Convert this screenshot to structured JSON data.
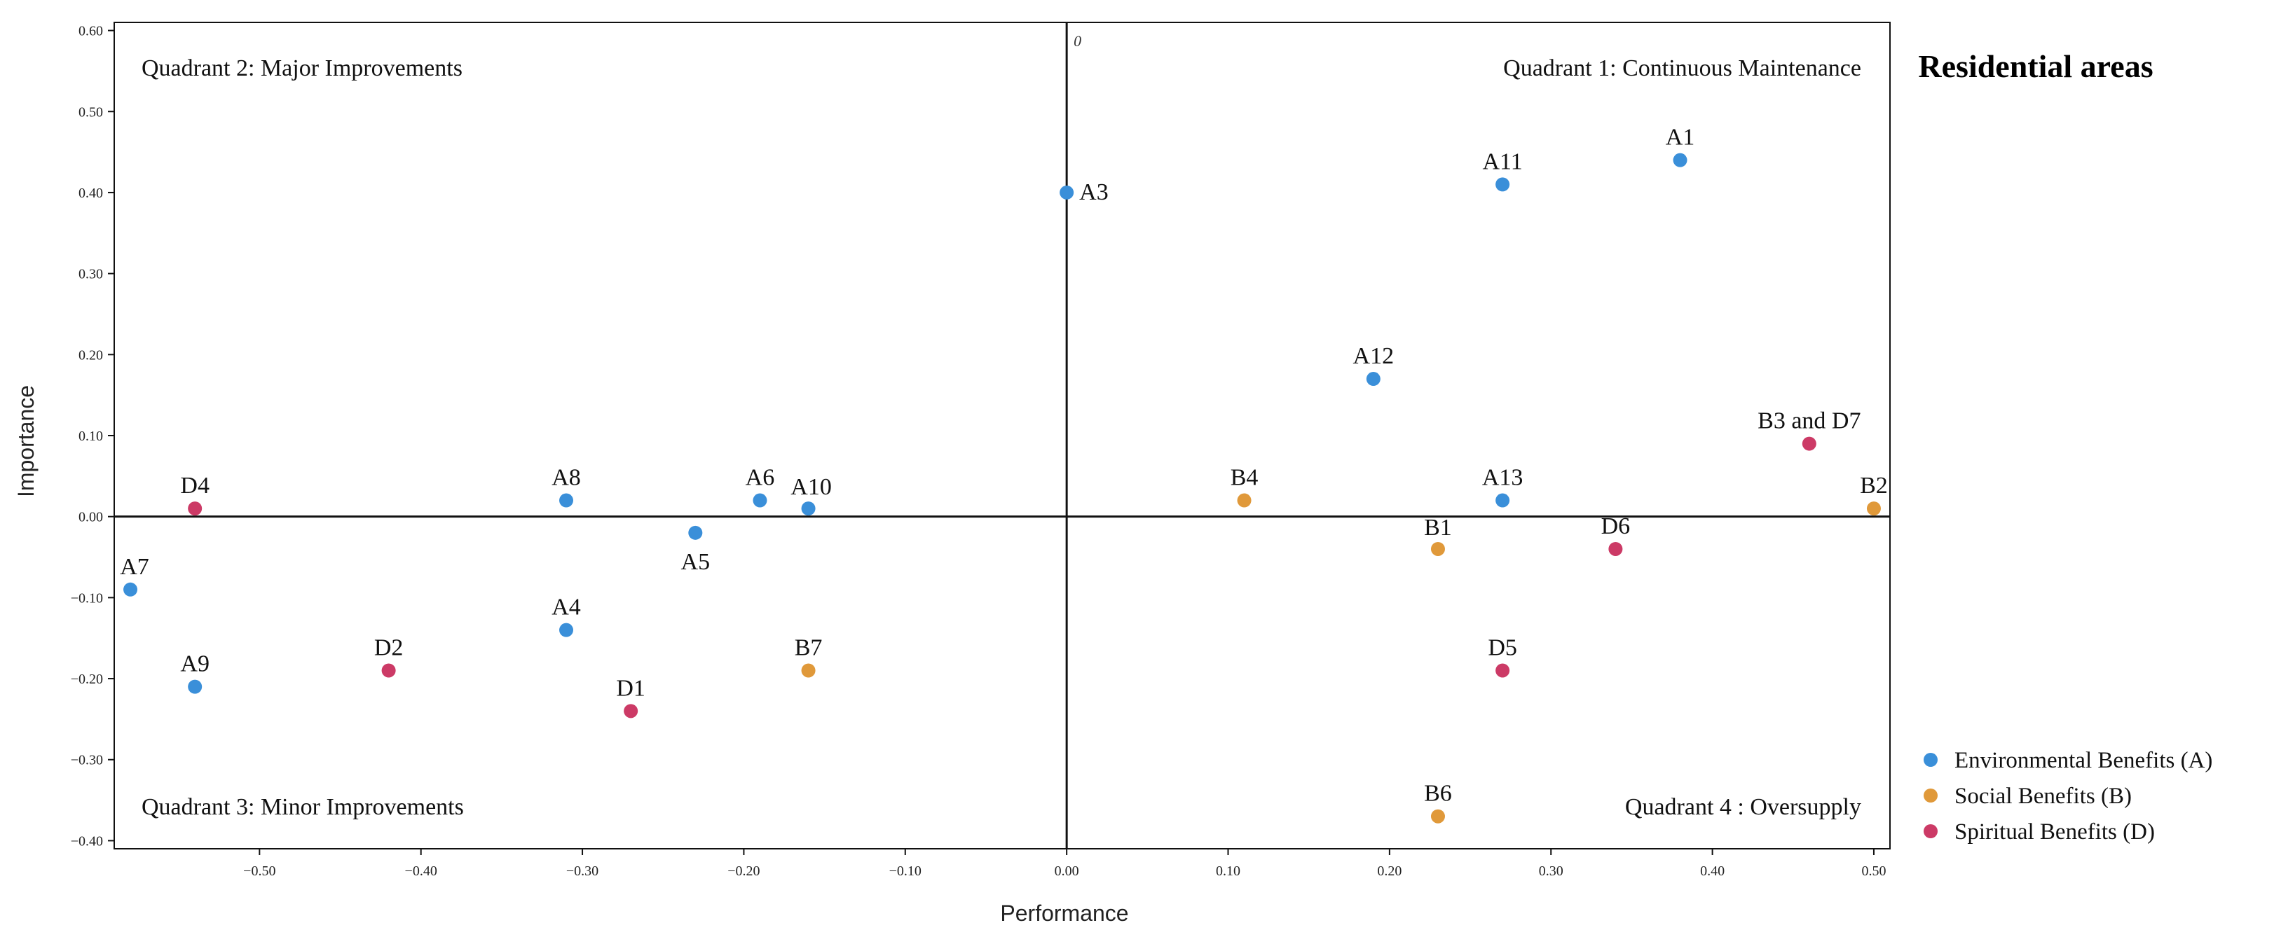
{
  "chart_data": {
    "type": "scatter",
    "title": "Residential areas",
    "xlabel": "Performance",
    "ylabel": "Importance",
    "xlim": [
      -0.59,
      0.51
    ],
    "ylim": [
      -0.41,
      0.61
    ],
    "xticks": [
      -0.5,
      -0.4,
      -0.3,
      -0.2,
      -0.1,
      0.0,
      0.1,
      0.2,
      0.3,
      0.4,
      0.5
    ],
    "xtick_labels": [
      "−0.50",
      "−0.40",
      "−0.30",
      "−0.20",
      "−0.10",
      "0.00",
      "0.10",
      "0.20",
      "0.30",
      "0.40",
      "0.50"
    ],
    "yticks": [
      0.6,
      0.5,
      0.4,
      0.3,
      0.2,
      0.1,
      0.0,
      -0.1,
      -0.2,
      -0.3,
      -0.4
    ],
    "ytick_labels": [
      "0.60",
      "0.50",
      "0.40",
      "0.30",
      "0.20",
      "0.10",
      "0.00",
      "−0.10",
      "−0.20",
      "−0.30",
      "−0.40"
    ],
    "origin_label": "0",
    "quadrants": {
      "q1": "Quadrant 1: Continuous Maintenance",
      "q2": "Quadrant 2: Major Improvements",
      "q3": "Quadrant 3: Minor Improvements",
      "q4": "Quadrant 4 : Oversupply"
    },
    "series": [
      {
        "name": "Environmental Benefits (A)",
        "color": "#3a8fd9",
        "points": [
          {
            "label": "A1",
            "x": 0.38,
            "y": 0.44
          },
          {
            "label": "A3",
            "x": 0.0,
            "y": 0.4
          },
          {
            "label": "A4",
            "x": -0.31,
            "y": -0.14
          },
          {
            "label": "A5",
            "x": -0.23,
            "y": -0.02
          },
          {
            "label": "A6",
            "x": -0.19,
            "y": 0.02
          },
          {
            "label": "A7",
            "x": -0.58,
            "y": -0.09
          },
          {
            "label": "A8",
            "x": -0.31,
            "y": 0.02
          },
          {
            "label": "A9",
            "x": -0.54,
            "y": -0.21
          },
          {
            "label": "A10",
            "x": -0.16,
            "y": 0.01
          },
          {
            "label": "A11",
            "x": 0.27,
            "y": 0.41
          },
          {
            "label": "A12",
            "x": 0.19,
            "y": 0.17
          },
          {
            "label": "A13",
            "x": 0.27,
            "y": 0.02
          }
        ]
      },
      {
        "name": "Social Benefits (B)",
        "color": "#e0993a",
        "points": [
          {
            "label": "B1",
            "x": 0.23,
            "y": -0.04
          },
          {
            "label": "B2",
            "x": 0.5,
            "y": 0.01
          },
          {
            "label": "B4",
            "x": 0.11,
            "y": 0.02
          },
          {
            "label": "B6",
            "x": 0.23,
            "y": -0.37
          },
          {
            "label": "B7",
            "x": -0.16,
            "y": -0.19
          }
        ]
      },
      {
        "name": "Spiritual Benefits (D)",
        "color": "#cc3a66",
        "points": [
          {
            "label": "D1",
            "x": -0.27,
            "y": -0.24
          },
          {
            "label": "D2",
            "x": -0.42,
            "y": -0.19
          },
          {
            "label": "D4",
            "x": -0.54,
            "y": 0.01
          },
          {
            "label": "D5",
            "x": 0.27,
            "y": -0.19
          },
          {
            "label": "D6",
            "x": 0.34,
            "y": -0.04
          },
          {
            "label": "B3 and D7",
            "x": 0.46,
            "y": 0.09
          }
        ]
      }
    ],
    "legend_position": "bottom-right"
  }
}
